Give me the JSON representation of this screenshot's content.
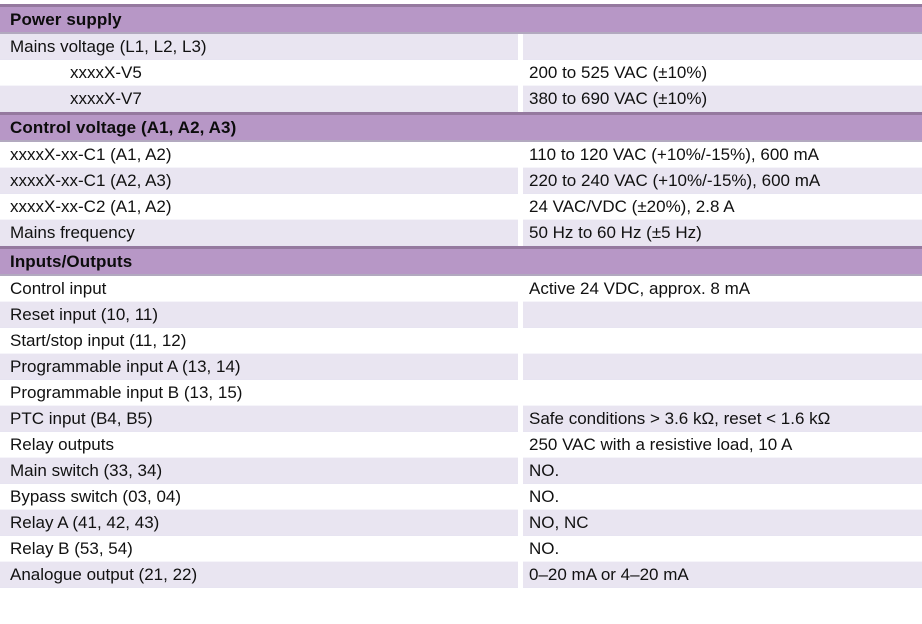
{
  "table": {
    "colors": {
      "header_bg": "#b797c6",
      "header_border_top": "#95799f",
      "header_border_bottom": "#b2a9bf",
      "row_stripe_bg": "#e9e5f1",
      "row_bg": "#ffffff",
      "text": "#111111"
    },
    "sections": [
      {
        "header": "Power supply",
        "rows": [
          {
            "label": "Mains voltage (L1, L2, L3)",
            "value": ""
          },
          {
            "label": "xxxxX-V5",
            "value": "200 to 525 VAC (±10%)"
          },
          {
            "label": "xxxxX-V7",
            "value": "380 to 690 VAC (±10%)"
          }
        ]
      },
      {
        "header": "Control voltage (A1, A2, A3)",
        "rows": [
          {
            "label": "xxxxX-xx-C1 (A1, A2)",
            "value": "110 to 120 VAC (+10%/-15%), 600 mA"
          },
          {
            "label": "xxxxX-xx-C1 (A2, A3)",
            "value": "220 to 240 VAC (+10%/-15%), 600 mA"
          },
          {
            "label": "xxxxX-xx-C2 (A1, A2)",
            "value": "24 VAC/VDC (±20%), 2.8 A"
          },
          {
            "label": "Mains frequency",
            "value": "50 Hz to 60 Hz (±5 Hz)"
          }
        ]
      },
      {
        "header": "Inputs/Outputs",
        "rows": [
          {
            "label": "Control input",
            "value": "Active 24 VDC, approx. 8 mA"
          },
          {
            "label": "Reset input (10, 11)",
            "value": ""
          },
          {
            "label": "Start/stop input (11, 12)",
            "value": ""
          },
          {
            "label": "Programmable input A (13, 14)",
            "value": ""
          },
          {
            "label": "Programmable input B (13, 15)",
            "value": ""
          },
          {
            "label": "PTC input (B4, B5)",
            "value": "Safe conditions > 3.6 kΩ, reset < 1.6 kΩ"
          },
          {
            "label": "Relay outputs",
            "value": "250 VAC with a resistive load, 10 A"
          },
          {
            "label": "Main switch (33, 34)",
            "value": "NO."
          },
          {
            "label": "Bypass switch (03, 04)",
            "value": "NO."
          },
          {
            "label": "Relay A (41, 42, 43)",
            "value": "NO, NC"
          },
          {
            "label": "Relay B (53, 54)",
            "value": "NO."
          },
          {
            "label": "Analogue output (21, 22)",
            "value": "0–20 mA or 4–20 mA"
          }
        ]
      }
    ]
  }
}
